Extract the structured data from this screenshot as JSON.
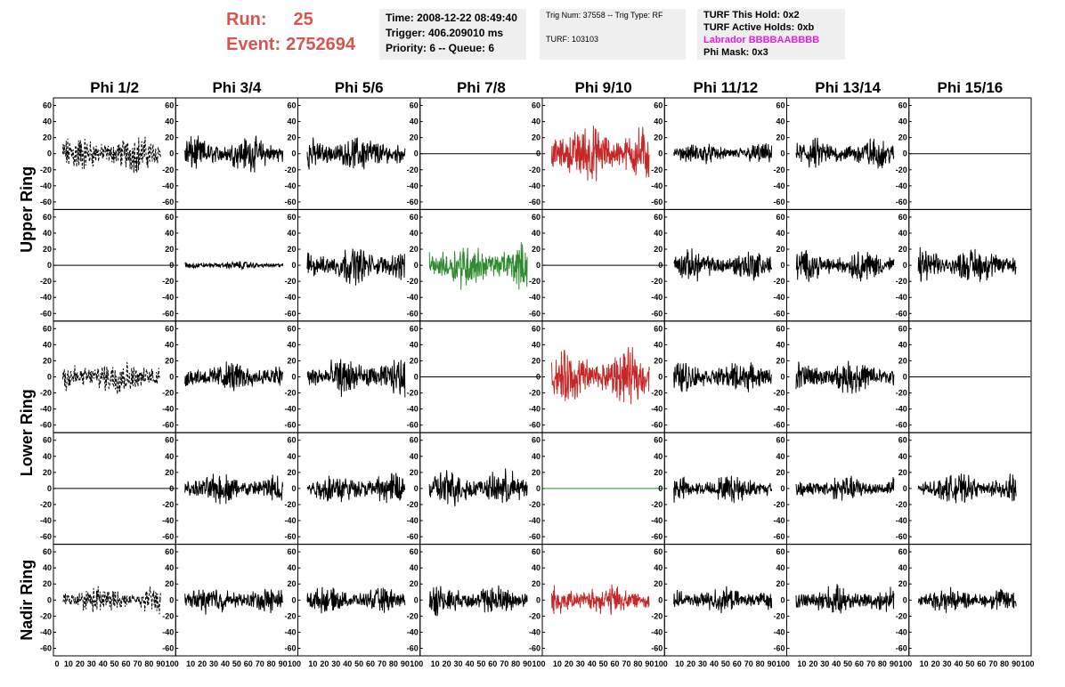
{
  "header": {
    "run_label": "Run:",
    "run_value": "25",
    "event_label": "Event:",
    "event_value": "2752694"
  },
  "info_box": {
    "time": "Time: 2008-12-22 08:49:40",
    "trigger": "Trigger: 406.209010 ms",
    "priority": "Priority: 6 -- Queue: 6"
  },
  "trig_box": {
    "trig": "Trig Num: 37558 -- Trig Type: RF",
    "turf": "TURF: 103103"
  },
  "turf_box": {
    "this_hold": "TURF This Hold: 0x2",
    "active_holds": "TURF Active Holds: 0xb",
    "labrador": "Labrador BBBBAABBBB",
    "phi_mask": "Phi Mask: 0x3"
  },
  "colors": {
    "header_red": "#d9534f",
    "labrador_magenta": "#e020e0",
    "trace_black": "#000000",
    "trace_red": "#c62828",
    "trace_green": "#2e8b2e",
    "box_bg": "#efefef"
  },
  "chart_data": {
    "type": "line",
    "columns": [
      "Phi 1/2",
      "Phi 3/4",
      "Phi 5/6",
      "Phi 7/8",
      "Phi 9/10",
      "Phi 11/12",
      "Phi 13/14",
      "Phi 15/16"
    ],
    "rows": [
      "Upper Ring",
      "",
      "Lower Ring",
      "",
      "Nadir Ring"
    ],
    "row_labels": [
      {
        "text": "Upper Ring",
        "rows": [
          0,
          1
        ]
      },
      {
        "text": "Lower Ring",
        "rows": [
          2,
          3
        ]
      },
      {
        "text": "Nadir Ring",
        "rows": [
          4
        ]
      }
    ],
    "xlim": [
      0,
      100
    ],
    "ylim": [
      -65,
      65
    ],
    "x_ticks": [
      0,
      10,
      20,
      30,
      40,
      50,
      60,
      70,
      80,
      90,
      100
    ],
    "y_ticks": [
      -60,
      -40,
      -20,
      0,
      20,
      40,
      60
    ],
    "panels": [
      [
        {
          "style": "dashed",
          "color": "#000000",
          "amp": 18
        },
        {
          "style": "solid",
          "color": "#000000",
          "amp": 17
        },
        {
          "style": "solid",
          "color": "#000000",
          "amp": 17
        },
        {
          "style": "flat",
          "color": "#000000",
          "amp": 0
        },
        {
          "style": "solid",
          "color": "#c62828",
          "amp": 28
        },
        {
          "style": "solid",
          "color": "#000000",
          "amp": 10
        },
        {
          "style": "solid",
          "color": "#000000",
          "amp": 15
        },
        {
          "style": "flat",
          "color": "#000000",
          "amp": 0
        }
      ],
      [
        {
          "style": "flat",
          "color": "#000000",
          "amp": 0
        },
        {
          "style": "solid",
          "color": "#000000",
          "amp": 4
        },
        {
          "style": "solid",
          "color": "#000000",
          "amp": 18
        },
        {
          "style": "solid",
          "color": "#2e8b2e",
          "amp": 22
        },
        {
          "style": "flat",
          "color": "#000000",
          "amp": 0
        },
        {
          "style": "solid",
          "color": "#000000",
          "amp": 15
        },
        {
          "style": "solid",
          "color": "#000000",
          "amp": 15
        },
        {
          "style": "solid",
          "color": "#000000",
          "amp": 17
        }
      ],
      [
        {
          "style": "dashed",
          "color": "#000000",
          "amp": 17
        },
        {
          "style": "solid",
          "color": "#000000",
          "amp": 15
        },
        {
          "style": "solid",
          "color": "#000000",
          "amp": 18
        },
        {
          "style": "flat",
          "color": "#000000",
          "amp": 0
        },
        {
          "style": "solid",
          "color": "#c62828",
          "amp": 26
        },
        {
          "style": "solid",
          "color": "#000000",
          "amp": 15
        },
        {
          "style": "solid",
          "color": "#000000",
          "amp": 16
        },
        {
          "style": "flat",
          "color": "#000000",
          "amp": 0
        }
      ],
      [
        {
          "style": "flat",
          "color": "#000000",
          "amp": 0
        },
        {
          "style": "solid",
          "color": "#000000",
          "amp": 15
        },
        {
          "style": "solid",
          "color": "#000000",
          "amp": 15
        },
        {
          "style": "solid",
          "color": "#000000",
          "amp": 18
        },
        {
          "style": "flat",
          "color": "#2e8b2e",
          "amp": 0
        },
        {
          "style": "solid",
          "color": "#000000",
          "amp": 13
        },
        {
          "style": "solid",
          "color": "#000000",
          "amp": 12
        },
        {
          "style": "solid",
          "color": "#000000",
          "amp": 14
        }
      ],
      [
        {
          "style": "dashed",
          "color": "#000000",
          "amp": 13
        },
        {
          "style": "solid",
          "color": "#000000",
          "amp": 13
        },
        {
          "style": "solid",
          "color": "#000000",
          "amp": 12
        },
        {
          "style": "solid",
          "color": "#000000",
          "amp": 15
        },
        {
          "style": "solid",
          "color": "#c62828",
          "amp": 15
        },
        {
          "style": "solid",
          "color": "#000000",
          "amp": 12
        },
        {
          "style": "solid",
          "color": "#000000",
          "amp": 14
        },
        {
          "style": "solid",
          "color": "#000000",
          "amp": 12
        }
      ]
    ]
  }
}
